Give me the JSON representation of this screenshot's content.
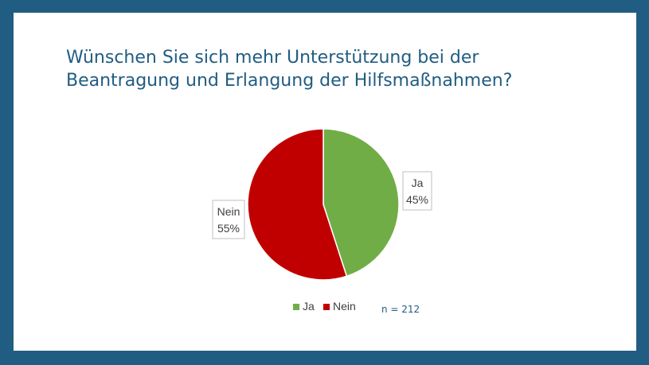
{
  "slide": {
    "title_line1": "Wünschen Sie sich mehr Unterstützung bei der",
    "title_line2": "Beantragung und Erlangung der Hilfsmaßnahmen?",
    "note": "n = 212"
  },
  "colors": {
    "frame": "#215d82",
    "title": "#215d82"
  },
  "chart_data": {
    "type": "pie",
    "title": "",
    "slices": [
      {
        "label": "Ja",
        "value": 45,
        "display": "45%",
        "color": "#70ad47"
      },
      {
        "label": "Nein",
        "value": 55,
        "display": "55%",
        "color": "#c00000"
      }
    ],
    "legend": {
      "placement": "bottom",
      "entries": [
        "Ja",
        "Nein"
      ]
    }
  }
}
